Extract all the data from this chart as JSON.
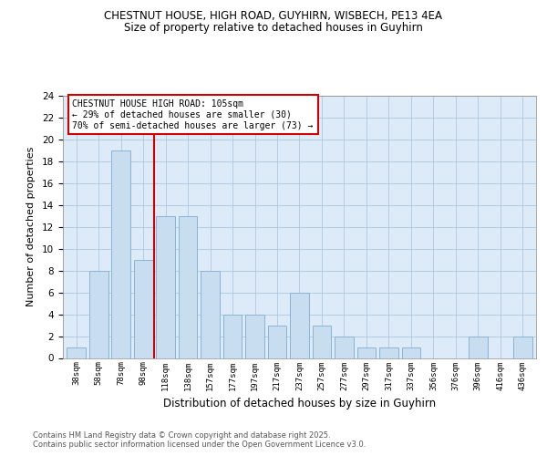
{
  "title_line1": "CHESTNUT HOUSE, HIGH ROAD, GUYHIRN, WISBECH, PE13 4EA",
  "title_line2": "Size of property relative to detached houses in Guyhirn",
  "xlabel": "Distribution of detached houses by size in Guyhirn",
  "ylabel": "Number of detached properties",
  "categories": [
    "38sqm",
    "58sqm",
    "78sqm",
    "98sqm",
    "118sqm",
    "138sqm",
    "157sqm",
    "177sqm",
    "197sqm",
    "217sqm",
    "237sqm",
    "257sqm",
    "277sqm",
    "297sqm",
    "317sqm",
    "337sqm",
    "356sqm",
    "376sqm",
    "396sqm",
    "416sqm",
    "436sqm"
  ],
  "values": [
    1,
    8,
    19,
    9,
    13,
    13,
    8,
    4,
    4,
    3,
    6,
    3,
    2,
    1,
    1,
    1,
    0,
    0,
    2,
    0,
    2
  ],
  "bar_color": "#c8ddf0",
  "bar_edge_color": "#89b4d4",
  "vline_color": "#cc0000",
  "annotation_text": "CHESTNUT HOUSE HIGH ROAD: 105sqm\n← 29% of detached houses are smaller (30)\n70% of semi-detached houses are larger (73) →",
  "annotation_box_color": "white",
  "annotation_box_edge": "#cc0000",
  "ylim": [
    0,
    24
  ],
  "yticks": [
    0,
    2,
    4,
    6,
    8,
    10,
    12,
    14,
    16,
    18,
    20,
    22,
    24
  ],
  "grid_color": "#aec8de",
  "background_color": "#ddeaf7",
  "footnote": "Contains HM Land Registry data © Crown copyright and database right 2025.\nContains public sector information licensed under the Open Government Licence v3.0.",
  "vline_pos": 3.5
}
